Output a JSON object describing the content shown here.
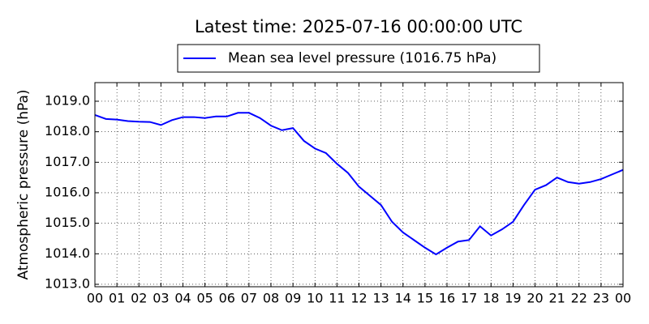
{
  "chart_data": {
    "type": "line",
    "title": "Latest time: 2025-07-16 00:00:00 UTC",
    "y_label": "Atmospheric pressure (hPa)",
    "x": [
      0,
      0.5,
      1,
      1.5,
      2,
      2.5,
      3,
      3.5,
      4,
      4.5,
      5,
      5.5,
      6,
      6.5,
      7,
      7.5,
      8,
      8.5,
      9,
      9.5,
      10,
      10.5,
      11,
      11.5,
      12,
      12.5,
      13,
      13.5,
      14,
      14.5,
      15,
      15.5,
      16,
      16.5,
      17,
      17.5,
      18,
      18.5,
      19,
      19.5,
      20,
      20.5,
      21,
      21.5,
      22,
      22.5,
      23,
      23.5,
      24
    ],
    "series": [
      {
        "name": "Mean sea level pressure (1016.75 hPa)",
        "color": "#0000ff",
        "values": [
          1018.55,
          1018.42,
          1018.4,
          1018.35,
          1018.33,
          1018.32,
          1018.22,
          1018.38,
          1018.48,
          1018.48,
          1018.45,
          1018.5,
          1018.5,
          1018.62,
          1018.62,
          1018.45,
          1018.2,
          1018.05,
          1018.12,
          1017.7,
          1017.45,
          1017.3,
          1016.95,
          1016.65,
          1016.2,
          1015.9,
          1015.6,
          1015.05,
          1014.7,
          1014.45,
          1014.2,
          1013.98,
          1014.2,
          1014.4,
          1014.45,
          1014.9,
          1014.6,
          1014.8,
          1015.05,
          1015.6,
          1016.1,
          1016.25,
          1016.5,
          1016.35,
          1016.3,
          1016.35,
          1016.45,
          1016.6,
          1016.75
        ]
      }
    ],
    "xlim": [
      0,
      24
    ],
    "xticks": [
      {
        "value": 0,
        "label": "00"
      },
      {
        "value": 1,
        "label": "01"
      },
      {
        "value": 2,
        "label": "02"
      },
      {
        "value": 3,
        "label": "03"
      },
      {
        "value": 4,
        "label": "04"
      },
      {
        "value": 5,
        "label": "05"
      },
      {
        "value": 6,
        "label": "06"
      },
      {
        "value": 7,
        "label": "07"
      },
      {
        "value": 8,
        "label": "08"
      },
      {
        "value": 9,
        "label": "09"
      },
      {
        "value": 10,
        "label": "10"
      },
      {
        "value": 11,
        "label": "11"
      },
      {
        "value": 12,
        "label": "12"
      },
      {
        "value": 13,
        "label": "13"
      },
      {
        "value": 14,
        "label": "14"
      },
      {
        "value": 15,
        "label": "15"
      },
      {
        "value": 16,
        "label": "16"
      },
      {
        "value": 17,
        "label": "17"
      },
      {
        "value": 18,
        "label": "18"
      },
      {
        "value": 19,
        "label": "19"
      },
      {
        "value": 20,
        "label": "20"
      },
      {
        "value": 21,
        "label": "21"
      },
      {
        "value": 22,
        "label": "22"
      },
      {
        "value": 23,
        "label": "23"
      },
      {
        "value": 24,
        "label": "00"
      }
    ],
    "ylim": [
      1012.92,
      1019.61
    ],
    "yticks": [
      {
        "value": 1013,
        "label": "1013.0"
      },
      {
        "value": 1014,
        "label": "1014.0"
      },
      {
        "value": 1015,
        "label": "1015.0"
      },
      {
        "value": 1016,
        "label": "1016.0"
      },
      {
        "value": 1017,
        "label": "1017.0"
      },
      {
        "value": 1018,
        "label": "1018.0"
      },
      {
        "value": 1019,
        "label": "1019.0"
      }
    ],
    "grid": true
  }
}
